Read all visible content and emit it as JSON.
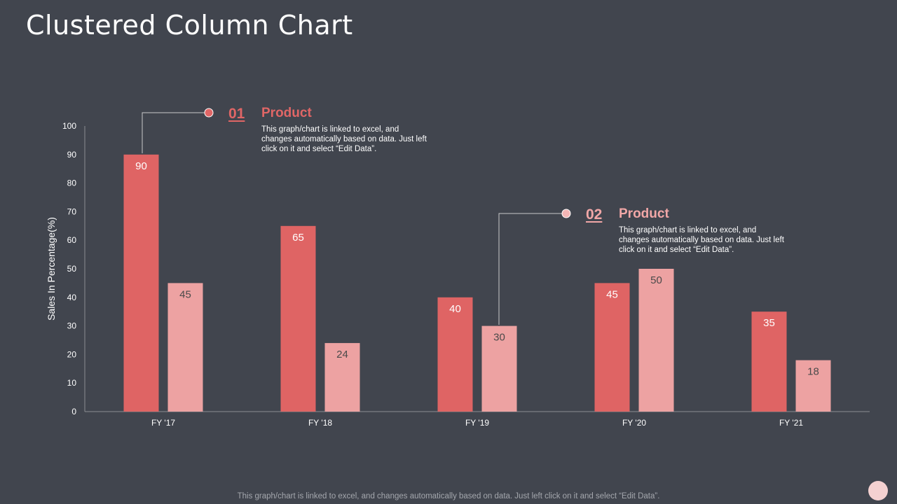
{
  "page": {
    "title": "Clustered Column Chart"
  },
  "annotations": [
    {
      "number": "01",
      "title": "Product",
      "description": "This graph/chart is linked to excel, and changes automatically based on data. Just left click on it and select “Edit Data”.",
      "color": "#e06666"
    },
    {
      "number": "02",
      "title": "Product",
      "description": "This graph/chart is linked to excel, and changes automatically based on data. Just left click on it and select “Edit Data”.",
      "color": "#f1a7a7"
    }
  ],
  "footer": {
    "text": "This graph/chart is linked to excel, and changes automatically based on data. Just left click on it and select “Edit Data”."
  },
  "chart_data": {
    "type": "bar",
    "title": "",
    "xlabel": "",
    "ylabel": "Sales In Percentage(%)",
    "categories": [
      "FY '17",
      "FY '18",
      "FY '19",
      "FY '20",
      "FY '21"
    ],
    "series": [
      {
        "name": "Product 01",
        "values": [
          90,
          65,
          40,
          45,
          35
        ],
        "color": "#df6464"
      },
      {
        "name": "Product 02",
        "values": [
          45,
          24,
          30,
          50,
          18
        ],
        "color": "#eda2a2"
      }
    ],
    "ylim": [
      0,
      100
    ],
    "yticks": [
      0,
      10,
      20,
      30,
      40,
      50,
      60,
      70,
      80,
      90,
      100
    ],
    "grid": false,
    "legend": "none"
  }
}
